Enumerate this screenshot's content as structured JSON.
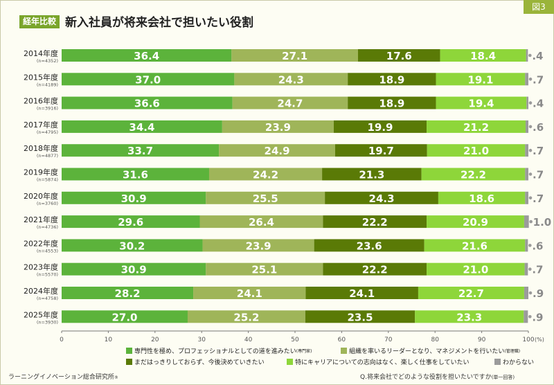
{
  "badge": "図3",
  "tag": "経年比較",
  "title": "新入社員が将来会社で担いたい役割",
  "legend": [
    {
      "label": "専門性を極め、プロフェッショナルとしての道を進みたい",
      "note": "(専門家)",
      "color": "#5cb33b"
    },
    {
      "label": "組織を率いるリーダーとなり、マネジメントを行いたい",
      "note": "(管理職)",
      "color": "#9fb559"
    },
    {
      "label": "まだはっきりしておらず、今後決めていきたい",
      "note": "",
      "color": "#5a7a06"
    },
    {
      "label": "特にキャリアについての志向はなく、楽しく仕事をしていたい",
      "note": "",
      "color": "#8ed63a"
    },
    {
      "label": "わからない",
      "note": "",
      "color": "#9b9b9b"
    }
  ],
  "footer": {
    "left": "ラーニングイノベーション総合研究所",
    "left_mark": "®",
    "right": "Q.将来会社でどのような役割を担いたいですか",
    "right_note": "(単一回答)"
  },
  "chart_data": {
    "type": "bar",
    "orientation": "horizontal",
    "stacked": true,
    "categories": [
      "2014年度",
      "2015年度",
      "2016年度",
      "2017年度",
      "2018年度",
      "2019年度",
      "2020年度",
      "2021年度",
      "2022年度",
      "2023年度",
      "2024年度",
      "2025年度"
    ],
    "sample_sizes": [
      "(n=4352)",
      "(n=4189)",
      "(n=3916)",
      "(n=4795)",
      "(n=4877)",
      "(n=5874)",
      "(n=3760)",
      "(n=4736)",
      "(n=4553)",
      "(n=5570)",
      "(n=4758)",
      "(n=3930)"
    ],
    "series": [
      {
        "values": [
          36.4,
          37.0,
          36.6,
          34.4,
          33.7,
          31.6,
          30.9,
          29.6,
          30.2,
          30.9,
          28.2,
          27.0
        ]
      },
      {
        "values": [
          27.1,
          24.3,
          24.7,
          23.9,
          24.9,
          24.2,
          25.5,
          26.4,
          23.9,
          25.1,
          24.1,
          25.2
        ]
      },
      {
        "values": [
          17.6,
          18.9,
          18.9,
          19.9,
          19.7,
          21.3,
          24.3,
          22.2,
          23.6,
          22.2,
          24.1,
          23.5
        ]
      },
      {
        "values": [
          18.4,
          19.1,
          19.4,
          21.2,
          21.0,
          22.2,
          18.6,
          20.9,
          21.6,
          21.0,
          22.7,
          23.3
        ]
      },
      {
        "values": [
          0.4,
          0.7,
          0.4,
          0.6,
          0.7,
          0.7,
          0.7,
          1.0,
          0.6,
          0.7,
          0.9,
          0.9
        ]
      }
    ],
    "xlim": [
      0,
      100
    ],
    "xticks": [
      "0",
      "10",
      "20",
      "30",
      "40",
      "50",
      "60",
      "70",
      "80",
      "90",
      "100"
    ],
    "x_unit": "(%)",
    "grid": false
  }
}
